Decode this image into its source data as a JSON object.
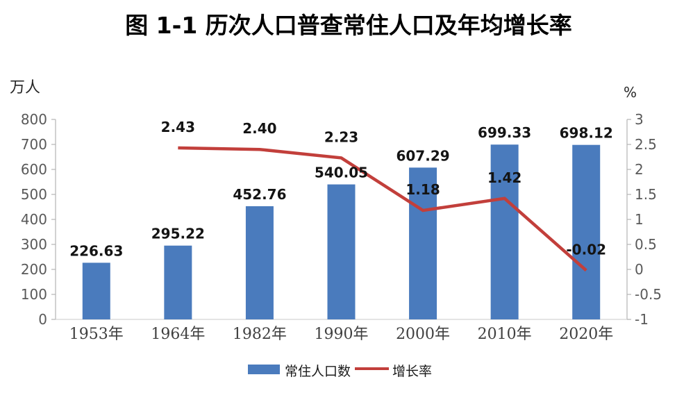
{
  "title": "图 1-1  历次人口普查常住人口及年均增长率",
  "chart_data": {
    "type": "bar",
    "subtype": "combo-bar-line",
    "categories": [
      "1953年",
      "1964年",
      "1982年",
      "1990年",
      "2000年",
      "2010年",
      "2020年"
    ],
    "series": [
      {
        "name": "常住人口数",
        "type": "bar",
        "axis": "left",
        "color": "#4a7bbd",
        "values": [
          226.63,
          295.22,
          452.76,
          540.05,
          607.29,
          699.33,
          698.12
        ],
        "labels": [
          "226.63",
          "295.22",
          "452.76",
          "540.05",
          "607.29",
          "699.33",
          "698.12"
        ]
      },
      {
        "name": "增长率",
        "type": "line",
        "axis": "right",
        "color": "#c23f3b",
        "values": [
          null,
          2.43,
          2.4,
          2.23,
          1.18,
          1.42,
          -0.02
        ],
        "labels": [
          "",
          "2.43",
          "2.40",
          "2.23",
          "1.18",
          "1.42",
          "-0.02"
        ]
      }
    ],
    "left_axis": {
      "label": "万人",
      "min": 0,
      "max": 800,
      "step": 100
    },
    "right_axis": {
      "label": "%",
      "min": -1,
      "max": 3,
      "step": 0.5
    },
    "legend": {
      "position": "bottom",
      "items": [
        "常住人口数",
        "增长率"
      ]
    },
    "grid": false
  },
  "colors": {
    "axis_line": "#b5b5b5",
    "baseline": "#d4d4d4",
    "tick_text": "#595959",
    "data_label": "#141414",
    "background": "#ffffff"
  }
}
